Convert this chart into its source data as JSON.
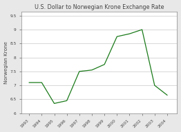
{
  "years": [
    1993,
    1994,
    1995,
    1996,
    1997,
    1998,
    1999,
    2000,
    2001,
    2002,
    2003,
    2004
  ],
  "values": [
    7.1,
    7.1,
    6.35,
    6.45,
    7.5,
    7.55,
    7.75,
    8.75,
    8.85,
    9.0,
    7.0,
    6.65
  ],
  "title": "U.S. Dollar to Norwegian Krone Exchange Rate",
  "ylabel": "Norwegian Krone",
  "ylim": [
    6.0,
    9.65
  ],
  "yticks": [
    6.0,
    6.5,
    7.0,
    7.5,
    8.0,
    8.5,
    9.0,
    9.5
  ],
  "line_color": "#1a7a1a",
  "plot_bg_color": "#ffffff",
  "fig_bg_color": "#e8e8e8",
  "grid_color": "#c8c8c8",
  "title_fontsize": 5.8,
  "label_fontsize": 5.2,
  "tick_fontsize": 4.2,
  "spine_color": "#888888"
}
